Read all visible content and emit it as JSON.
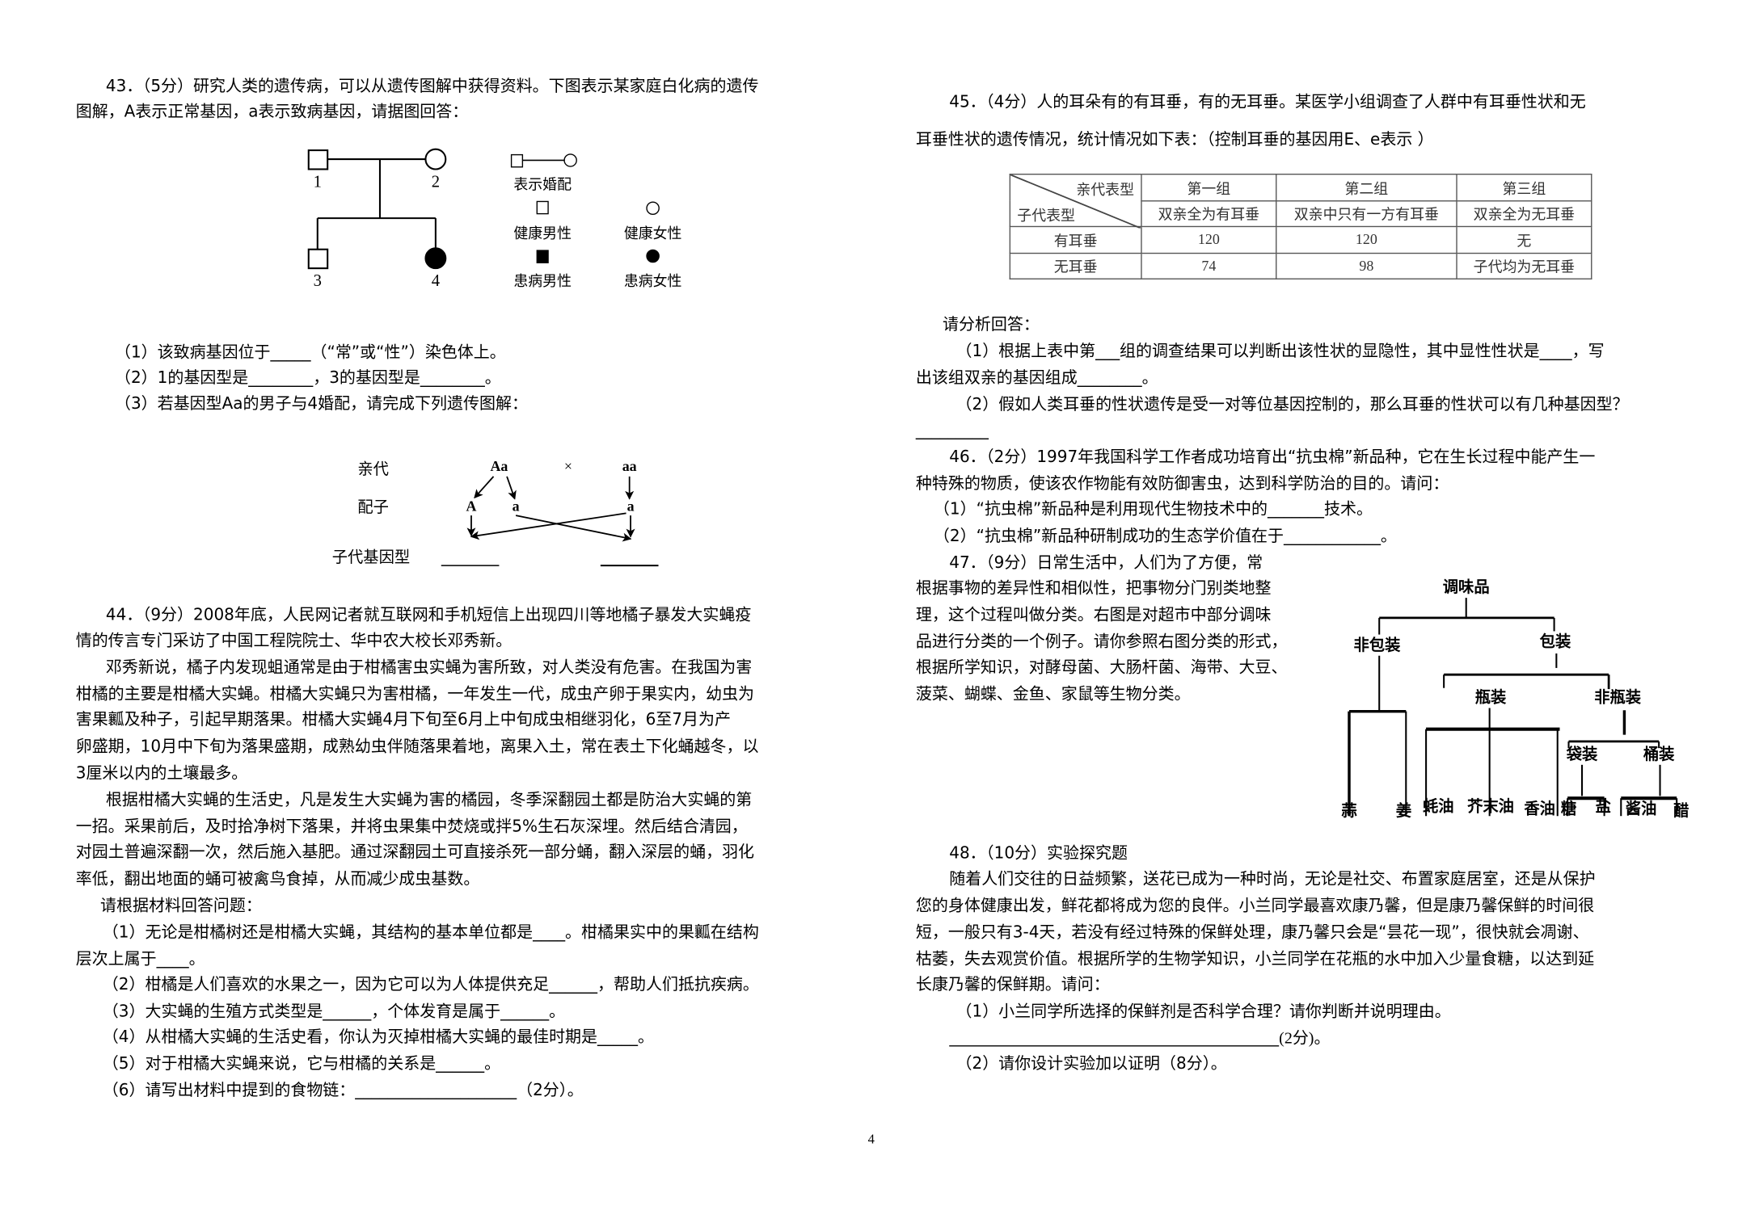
{
  "q43": {
    "lines": [
      "43．（5分）研究人类的遗传病，可以从遗传图解中获得资料。下图表示某家庭白化病的遗传",
      "图解，A表示正常基因，a表示致病基因，请据图回答："
    ],
    "pedigree": {
      "labels": [
        "1",
        "2",
        "3",
        "4"
      ],
      "legend": {
        "marriage": "表示婚配",
        "healthy_male": "健康男性",
        "healthy_female": "健康女性",
        "affected_male": "患病男性",
        "affected_female": "患病女性"
      }
    },
    "questions": [
      "（1）该致病基因位于_____（“常”或“性”）染色体上。",
      "（2）1的基因型是________，3的基因型是________。",
      "（3）若基因型Aa的男子与4婚配，请完成下列遗传图解："
    ],
    "cross": {
      "parent_label": "亲代",
      "gamete_label": "配子",
      "offspring_label": "子代基因型",
      "parent1": "Aa",
      "cross_symbol": "×",
      "parent2": "aa",
      "g1": "A",
      "g2": "a",
      "g3": "a"
    }
  },
  "q44": {
    "lines": [
      "44．（9分）2008年底，人民网记者就互联网和手机短信上出现四川等地橘子暴发大实蝇疫",
      "情的传言专门采访了中国工程院院士、华中农大校长邓秀新。",
      "邓秀新说，橘子内发现蛆通常是由于柑橘害虫实蝇为害所致，对人类没有危害。在我国为害",
      "柑橘的主要是柑橘大实蝇。柑橘大实蝇只为害柑橘，一年发生一代，成虫产卵于果实内，幼虫为",
      "害果瓤及种子，引起早期落果。柑橘大实蝇4月下旬至6月上中旬成虫相继羽化，6至7月为产",
      "卵盛期，10月中下旬为落果盛期，成熟幼虫伴随落果着地，离果入土，常在表土下化蛹越冬，以",
      "3厘米以内的土壤最多。",
      "根据柑橘大实蝇的生活史，凡是发生大实蝇为害的橘园，冬季深翻园土都是防治大实蝇的第",
      "一招。采果前后，及时拾净树下落果，并将虫果集中焚烧或拌5%生石灰深埋。然后结合清园，",
      "对园土普遍深翻一次，然后施入基肥。通过深翻园土可直接杀死一部分蛹，翻入深层的蛹，羽化",
      "率低，翻出地面的蛹可被禽鸟食掉，从而减少成虫基数。",
      "请根据材料回答问题：",
      "（1）无论是柑橘树还是柑橘大实蝇，其结构的基本单位都是____。柑橘果实中的果瓤在结构",
      "层次上属于____。",
      "（2）柑橘是人们喜欢的水果之一，因为它可以为人体提供充足______，帮助人们抵抗疾病。",
      "（3）大实蝇的生殖方式类型是______，个体发育是属于______。",
      "（4）从柑橘大实蝇的生活史看，你认为灭掉柑橘大实蝇的最佳时期是_____。",
      "（5）对于柑橘大实蝇来说，它与柑橘的关系是______。",
      "（6）请写出材料中提到的食物链：____________________（2分）。"
    ]
  },
  "q45": {
    "lines": [
      "45．（4分）人的耳朵有的有耳垂，有的无耳垂。某医学小组调查了人群中有耳垂性状和无",
      "耳垂性状的遗传情况，统计情况如下表：（控制耳垂的基因用E、e表示 ）"
    ],
    "table": {
      "corner_top": "亲代表型",
      "corner_bottom": "子代表型",
      "groups": [
        "第一组",
        "第二组",
        "第三组"
      ],
      "parents": [
        "双亲全为有耳垂",
        "双亲中只有一方有耳垂",
        "双亲全为无耳垂"
      ],
      "rows": [
        {
          "label": "有耳垂",
          "values": [
            "120",
            "120",
            "无"
          ]
        },
        {
          "label": "无耳垂",
          "values": [
            "74",
            "98",
            "子代均为无耳垂"
          ]
        }
      ]
    },
    "after": [
      "请分析回答：",
      "（1）根据上表中第___组的调查结果可以判断出该性状的显隐性，其中显性性状是____，写",
      "出该组双亲的基因组成________。",
      "（2）假如人类耳垂的性状遗传是受一对等位基因控制的，那么耳垂的性状可以有几种基因型？",
      "_________"
    ]
  },
  "q46": {
    "lines": [
      "46．（2分）1997年我国科学工作者成功培育出“抗虫棉”新品种，它在生长过程中能产生一",
      "种特殊的物质，使该农作物能有效防御害虫，达到科学防治的目的。请问：",
      "（1）“抗虫棉”新品种是利用现代生物技术中的_______技术。",
      "（2）“抗虫棉”新品种研制成功的生态学价值在于____________。"
    ]
  },
  "q47": {
    "lines": [
      "47．（9分）日常生活中，人们为了方便，常",
      "根据事物的差异性和相似性，把事物分门别类地整",
      "理，这个过程叫做分类。右图是对超市中部分调味",
      "品进行分类的一个例子。请你参照右图分类的形式，",
      "根据所学知识，对酵母菌、大肠杆菌、海带、大豆、",
      "菠菜、蝴蝶、金鱼、家鼠等生物分类。"
    ],
    "tree": {
      "root": "调味品",
      "unpacked": "非包装",
      "packed": "包装",
      "bottled": "瓶装",
      "unbottled": "非瓶装",
      "bagged": "袋装",
      "barreled": "桶装",
      "leaves": [
        "蒜",
        "姜",
        "蚝油",
        "芥末油",
        "香油",
        "糖",
        "盐",
        "酱油",
        "醋"
      ]
    }
  },
  "q48": {
    "lines": [
      "48．（10分）实验探究题",
      "随着人们交往的日益频繁，送花已成为一种时尚，无论是社交、布置家庭居室，还是从保护",
      "您的身体健康出发，鲜花都将成为您的良伴。小兰同学最喜欢康乃馨，但是康乃馨保鲜的时间很",
      "短，一般只有3-4天，若没有经过特殊的保鲜处理，康乃馨只会是“昙花一现”，很快就会凋谢、",
      "枯萎，失去观赏价值。根据所学的生物学知识，小兰同学在花瓶的水中加入少量食糖，以达到延",
      "长康乃馨的保鲜期。请问：",
      "（1）小兰同学所选择的保鲜剂是否科学合理？请你判断并说明理由。",
      "(2分)。",
      "（2）请你设计实验加以证明（8分）。"
    ]
  },
  "page_number": "4"
}
